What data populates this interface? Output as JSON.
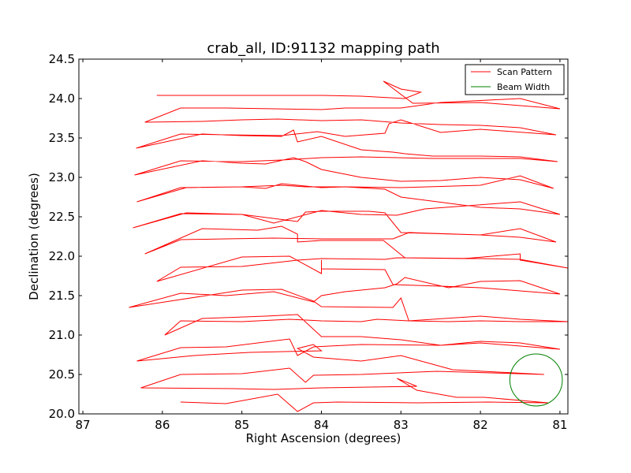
{
  "chart_data": {
    "type": "line",
    "title": "crab_all, ID:91132 mapping path",
    "xlabel": "Right Ascension (degrees)",
    "ylabel": "Declination (degrees)",
    "xlim": [
      87.05,
      80.9
    ],
    "ylim": [
      20.0,
      24.5
    ],
    "x_ticks": [
      87,
      86,
      85,
      84,
      83,
      82,
      81
    ],
    "y_ticks": [
      20.0,
      20.5,
      21.0,
      21.5,
      22.0,
      22.5,
      23.0,
      23.5,
      24.0,
      24.5
    ],
    "x_tick_labels": [
      "87",
      "86",
      "85",
      "84",
      "83",
      "82",
      "81"
    ],
    "y_tick_labels": [
      "20.0",
      "20.5",
      "21.0",
      "21.5",
      "22.0",
      "22.5",
      "23.0",
      "23.5",
      "24.0",
      "24.5"
    ],
    "grid": false,
    "legend_position": "top-right",
    "series": [
      {
        "name": "Scan Pattern",
        "color": "#ff0000",
        "points": [
          [
            85.77,
            20.15
          ],
          [
            85.2,
            20.13
          ],
          [
            84.55,
            20.25
          ],
          [
            84.3,
            20.03
          ],
          [
            84.1,
            20.14
          ],
          [
            83.8,
            20.15
          ],
          [
            82.8,
            20.14
          ],
          [
            81.9,
            20.15
          ],
          [
            81.15,
            20.14
          ],
          [
            81.95,
            20.21
          ],
          [
            82.3,
            20.21
          ],
          [
            82.8,
            20.3
          ],
          [
            83.05,
            20.45
          ],
          [
            82.8,
            20.35
          ],
          [
            84.0,
            20.33
          ],
          [
            84.6,
            20.31
          ],
          [
            85.1,
            20.32
          ],
          [
            86.27,
            20.33
          ],
          [
            85.77,
            20.5
          ],
          [
            85.0,
            20.51
          ],
          [
            84.4,
            20.58
          ],
          [
            84.2,
            20.4
          ],
          [
            84.1,
            20.49
          ],
          [
            83.5,
            20.5
          ],
          [
            82.55,
            20.54
          ],
          [
            81.2,
            20.5
          ],
          [
            82.35,
            20.56
          ],
          [
            83.0,
            20.74
          ],
          [
            83.5,
            20.67
          ],
          [
            84.1,
            20.72
          ],
          [
            84.3,
            20.83
          ],
          [
            84.1,
            20.88
          ],
          [
            84.0,
            20.8
          ],
          [
            84.9,
            20.78
          ],
          [
            85.6,
            20.74
          ],
          [
            86.32,
            20.67
          ],
          [
            85.77,
            20.84
          ],
          [
            85.2,
            20.85
          ],
          [
            84.4,
            20.95
          ],
          [
            84.3,
            20.74
          ],
          [
            84.1,
            20.85
          ],
          [
            83.5,
            20.88
          ],
          [
            82.5,
            20.87
          ],
          [
            82.0,
            20.9
          ],
          [
            81.0,
            20.82
          ],
          [
            81.5,
            20.9
          ],
          [
            82.0,
            20.92
          ],
          [
            82.5,
            20.87
          ],
          [
            83.0,
            20.94
          ],
          [
            83.5,
            20.98
          ],
          [
            84.0,
            20.98
          ],
          [
            84.3,
            21.26
          ],
          [
            84.7,
            21.24
          ],
          [
            85.5,
            21.21
          ],
          [
            85.97,
            21.0
          ],
          [
            85.77,
            21.18
          ],
          [
            85.0,
            21.17
          ],
          [
            84.4,
            21.2
          ],
          [
            84.0,
            21.18
          ],
          [
            83.5,
            21.17
          ],
          [
            83.3,
            21.2
          ],
          [
            82.9,
            21.18
          ],
          [
            82.4,
            21.17
          ],
          [
            82.0,
            21.18
          ],
          [
            81.5,
            21.17
          ],
          [
            80.9,
            21.17
          ],
          [
            81.5,
            21.2
          ],
          [
            82.0,
            21.24
          ],
          [
            82.9,
            21.18
          ],
          [
            83.0,
            21.47
          ],
          [
            83.1,
            21.35
          ],
          [
            84.0,
            21.36
          ],
          [
            84.1,
            21.43
          ],
          [
            84.5,
            21.58
          ],
          [
            85.0,
            21.57
          ],
          [
            86.42,
            21.35
          ],
          [
            85.77,
            21.53
          ],
          [
            85.2,
            21.5
          ],
          [
            84.6,
            21.55
          ],
          [
            84.1,
            21.42
          ],
          [
            84.0,
            21.5
          ],
          [
            83.7,
            21.55
          ],
          [
            83.2,
            21.6
          ],
          [
            83.05,
            21.65
          ],
          [
            82.95,
            21.73
          ],
          [
            82.4,
            21.6
          ],
          [
            82.0,
            21.68
          ],
          [
            81.5,
            21.69
          ],
          [
            81.0,
            21.52
          ],
          [
            81.5,
            21.56
          ],
          [
            82.0,
            21.6
          ],
          [
            82.5,
            21.62
          ],
          [
            83.1,
            21.64
          ],
          [
            83.2,
            21.83
          ],
          [
            84.0,
            21.84
          ],
          [
            84.0,
            21.95
          ],
          [
            84.0,
            21.78
          ],
          [
            84.4,
            22.0
          ],
          [
            85.0,
            21.99
          ],
          [
            86.07,
            21.68
          ],
          [
            85.77,
            21.86
          ],
          [
            85.0,
            21.87
          ],
          [
            84.3,
            21.95
          ],
          [
            84.0,
            21.97
          ],
          [
            83.2,
            21.96
          ],
          [
            83.05,
            21.98
          ],
          [
            82.2,
            21.97
          ],
          [
            81.5,
            22.03
          ],
          [
            81.5,
            21.95
          ],
          [
            80.9,
            21.85
          ],
          [
            81.5,
            21.96
          ],
          [
            82.0,
            21.97
          ],
          [
            82.95,
            21.98
          ],
          [
            83.22,
            22.2
          ],
          [
            83.5,
            22.2
          ],
          [
            84.0,
            22.2
          ],
          [
            84.3,
            22.18
          ],
          [
            84.3,
            22.28
          ],
          [
            84.5,
            22.38
          ],
          [
            84.8,
            22.33
          ],
          [
            85.5,
            22.35
          ],
          [
            86.22,
            22.03
          ],
          [
            85.77,
            22.21
          ],
          [
            85.2,
            22.22
          ],
          [
            84.6,
            22.23
          ],
          [
            84.0,
            22.22
          ],
          [
            83.7,
            22.22
          ],
          [
            83.1,
            22.22
          ],
          [
            82.9,
            22.3
          ],
          [
            82.0,
            22.27
          ],
          [
            81.5,
            22.35
          ],
          [
            81.05,
            22.18
          ],
          [
            81.5,
            22.24
          ],
          [
            82.0,
            22.27
          ],
          [
            83.0,
            22.3
          ],
          [
            83.2,
            22.55
          ],
          [
            83.4,
            22.57
          ],
          [
            84.0,
            22.57
          ],
          [
            84.2,
            22.56
          ],
          [
            84.3,
            22.44
          ],
          [
            85.0,
            22.53
          ],
          [
            85.7,
            22.55
          ],
          [
            86.37,
            22.36
          ],
          [
            85.77,
            22.54
          ],
          [
            85.0,
            22.53
          ],
          [
            84.6,
            22.42
          ],
          [
            84.0,
            22.58
          ],
          [
            83.5,
            22.53
          ],
          [
            83.05,
            22.52
          ],
          [
            82.7,
            22.6
          ],
          [
            82.3,
            22.63
          ],
          [
            81.5,
            22.69
          ],
          [
            81.0,
            22.53
          ],
          [
            81.5,
            22.6
          ],
          [
            82.0,
            22.62
          ],
          [
            83.0,
            22.75
          ],
          [
            83.2,
            22.85
          ],
          [
            83.7,
            22.88
          ],
          [
            84.0,
            22.87
          ],
          [
            84.5,
            22.92
          ],
          [
            84.7,
            22.86
          ],
          [
            85.0,
            22.88
          ],
          [
            85.7,
            22.87
          ],
          [
            86.32,
            22.69
          ],
          [
            85.77,
            22.87
          ],
          [
            85.0,
            22.88
          ],
          [
            84.5,
            22.9
          ],
          [
            84.2,
            22.88
          ],
          [
            83.7,
            22.88
          ],
          [
            83.0,
            22.87
          ],
          [
            82.0,
            22.9
          ],
          [
            81.5,
            23.02
          ],
          [
            81.08,
            22.86
          ],
          [
            81.5,
            22.97
          ],
          [
            82.0,
            23.0
          ],
          [
            82.5,
            22.96
          ],
          [
            83.0,
            22.95
          ],
          [
            83.5,
            23.0
          ],
          [
            84.0,
            23.1
          ],
          [
            84.2,
            23.2
          ],
          [
            84.35,
            23.25
          ],
          [
            84.7,
            23.17
          ],
          [
            85.0,
            23.18
          ],
          [
            85.5,
            23.21
          ],
          [
            86.35,
            23.03
          ],
          [
            85.77,
            23.21
          ],
          [
            85.0,
            23.2
          ],
          [
            84.5,
            23.22
          ],
          [
            84.0,
            23.25
          ],
          [
            83.5,
            23.26
          ],
          [
            82.6,
            23.24
          ],
          [
            82.4,
            23.24
          ],
          [
            81.5,
            23.24
          ],
          [
            81.03,
            23.2
          ],
          [
            81.5,
            23.26
          ],
          [
            82.0,
            23.27
          ],
          [
            82.6,
            23.27
          ],
          [
            82.95,
            23.3
          ],
          [
            83.1,
            23.32
          ],
          [
            83.5,
            23.35
          ],
          [
            84.0,
            23.52
          ],
          [
            84.3,
            23.45
          ],
          [
            84.35,
            23.6
          ],
          [
            84.5,
            23.52
          ],
          [
            85.0,
            23.53
          ],
          [
            85.5,
            23.55
          ],
          [
            86.33,
            23.37
          ],
          [
            85.77,
            23.55
          ],
          [
            85.2,
            23.54
          ],
          [
            84.5,
            23.53
          ],
          [
            84.05,
            23.58
          ],
          [
            83.7,
            23.52
          ],
          [
            83.2,
            23.56
          ],
          [
            83.15,
            23.68
          ],
          [
            83.0,
            23.73
          ],
          [
            82.5,
            23.57
          ],
          [
            82.0,
            23.61
          ],
          [
            81.05,
            23.54
          ],
          [
            81.5,
            23.63
          ],
          [
            82.0,
            23.66
          ],
          [
            82.5,
            23.67
          ],
          [
            83.0,
            23.69
          ],
          [
            83.5,
            23.73
          ],
          [
            84.0,
            23.72
          ],
          [
            84.55,
            23.74
          ],
          [
            85.0,
            23.73
          ],
          [
            85.5,
            23.71
          ],
          [
            86.22,
            23.7
          ],
          [
            85.77,
            23.88
          ],
          [
            85.2,
            23.88
          ],
          [
            84.6,
            23.87
          ],
          [
            84.0,
            23.86
          ],
          [
            83.7,
            23.88
          ],
          [
            83.5,
            23.88
          ],
          [
            83.2,
            23.88
          ],
          [
            83.0,
            23.88
          ],
          [
            82.5,
            23.95
          ],
          [
            81.5,
            24.0
          ],
          [
            81.0,
            23.87
          ],
          [
            82.0,
            23.95
          ],
          [
            82.85,
            23.94
          ],
          [
            83.22,
            24.22
          ],
          [
            83.0,
            24.12
          ],
          [
            82.75,
            24.08
          ],
          [
            82.95,
            24.0
          ],
          [
            83.5,
            24.03
          ],
          [
            84.0,
            24.04
          ],
          [
            84.5,
            24.04
          ],
          [
            85.0,
            24.04
          ],
          [
            86.07,
            24.04
          ]
        ]
      },
      {
        "name": "Beam Width",
        "color": "#008000",
        "shape": "circle",
        "center": [
          81.3,
          20.43
        ],
        "radius": 0.33
      }
    ]
  }
}
